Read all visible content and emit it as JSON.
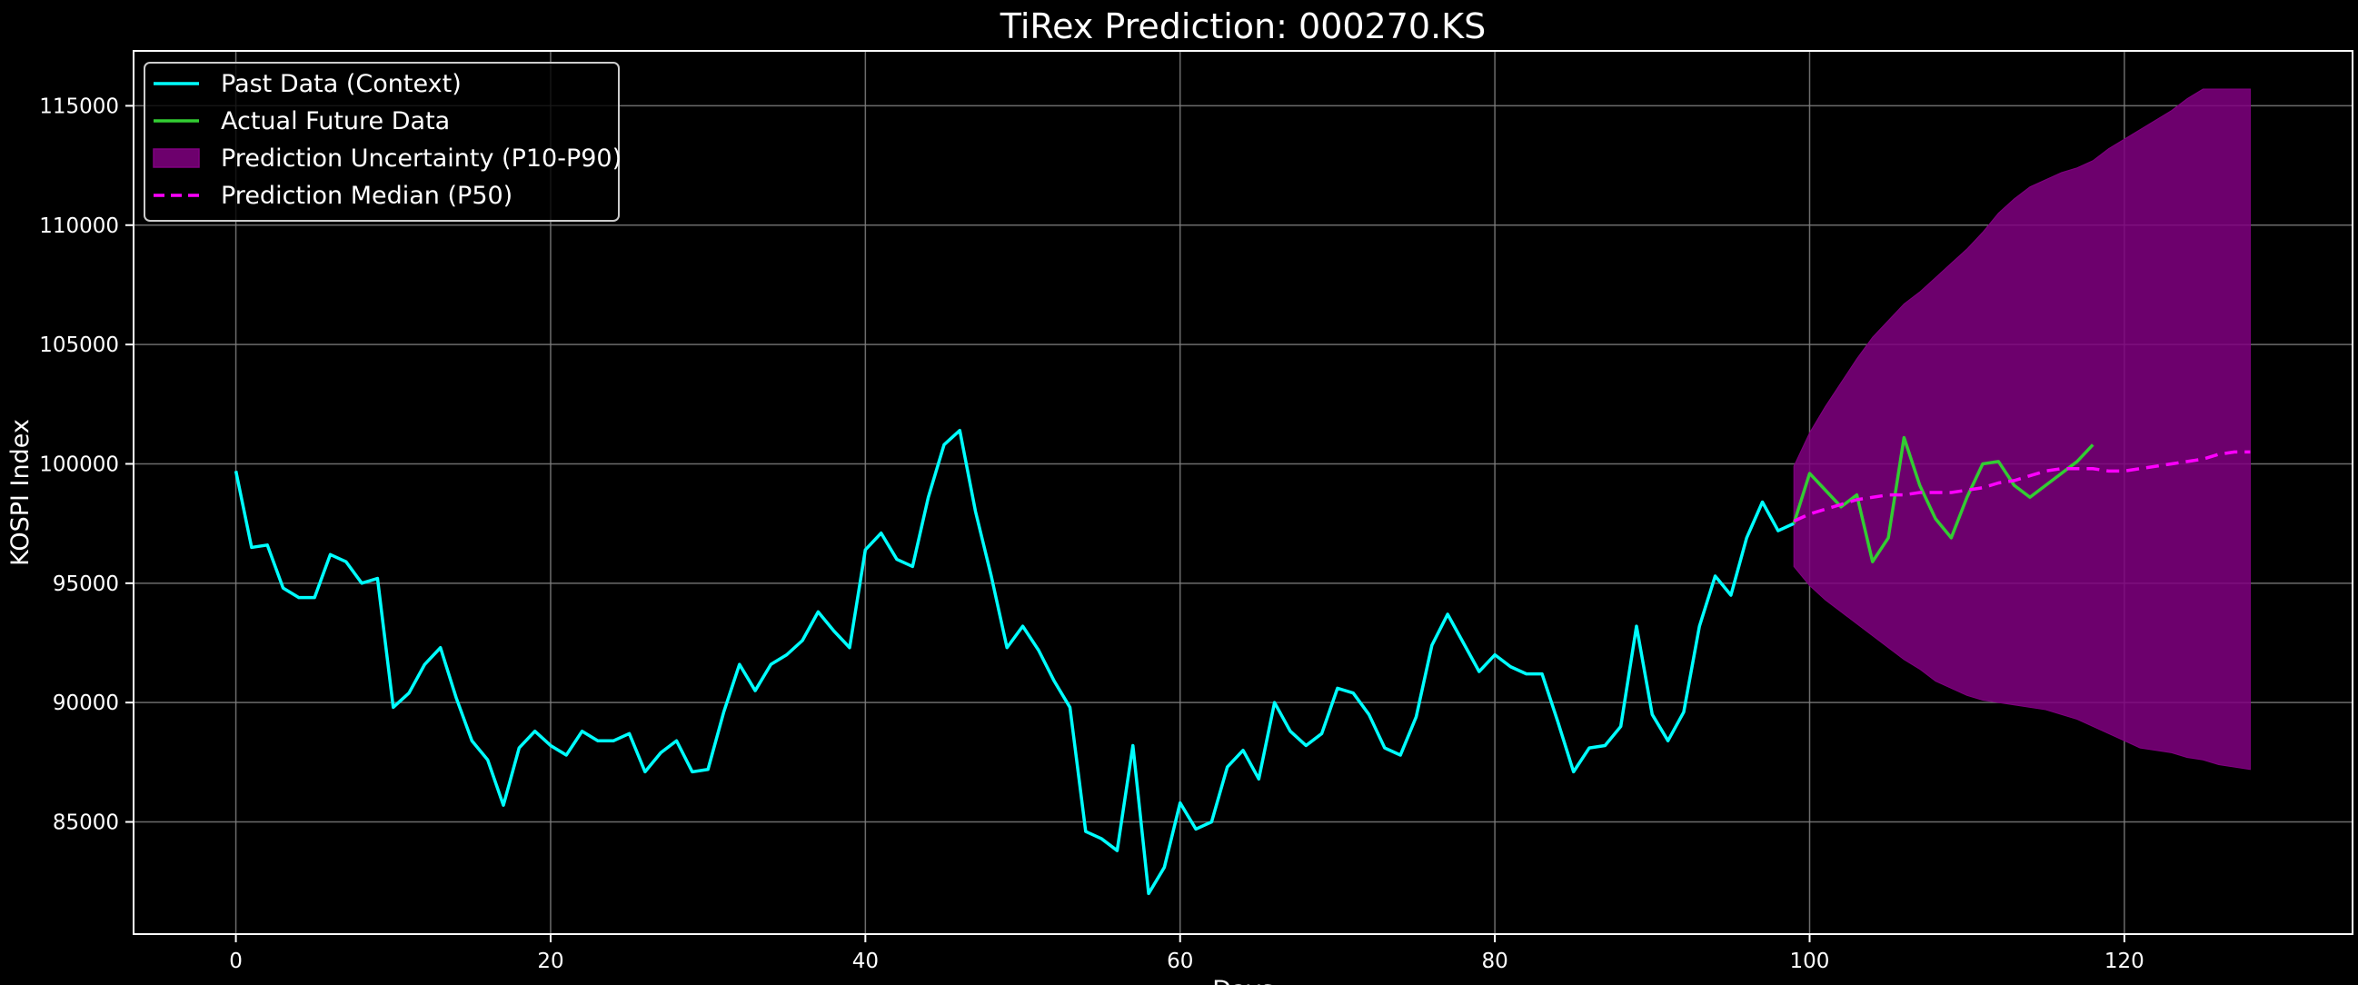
{
  "colors": {
    "background": "#000000",
    "past": "#00ffff",
    "actual": "#32cd32",
    "band": "#800080",
    "median": "#ff00ff",
    "grid": "#7f7f7f",
    "axis": "#ffffff"
  },
  "chart_data": {
    "type": "line",
    "title": "TiRex Prediction: 000270.KS",
    "xlabel": "Days",
    "ylabel": "KOSPI Index",
    "xlim": [
      -6.5,
      134.5
    ],
    "ylim": [
      80300,
      117300
    ],
    "xticks": [
      0,
      20,
      40,
      60,
      80,
      100,
      120
    ],
    "xtick_labels": [
      "0",
      "20",
      "40",
      "60",
      "80",
      "100",
      "120"
    ],
    "yticks": [
      85000,
      90000,
      95000,
      100000,
      105000,
      110000,
      115000
    ],
    "ytick_labels": [
      "85000",
      "90000",
      "95000",
      "100000",
      "105000",
      "110000",
      "115000"
    ],
    "grid": true,
    "legend_position": "top-left",
    "legend": [
      {
        "label": "Past Data (Context)",
        "kind": "line",
        "color": "#00ffff"
      },
      {
        "label": "Actual Future Data",
        "kind": "line",
        "color": "#32cd32"
      },
      {
        "label": "Prediction Uncertainty (P10-P90)",
        "kind": "patch",
        "color": "#800080"
      },
      {
        "label": "Prediction Median (P50)",
        "kind": "dash",
        "color": "#ff00ff"
      }
    ],
    "series": [
      {
        "name": "Past Data (Context)",
        "x_start": 0,
        "values": [
          99700,
          96500,
          96600,
          94800,
          94400,
          94400,
          96200,
          95900,
          95000,
          95200,
          89800,
          90400,
          91600,
          92300,
          90200,
          88400,
          87600,
          85700,
          88100,
          88800,
          88200,
          87800,
          88800,
          88400,
          88400,
          88700,
          87100,
          87900,
          88400,
          87100,
          87200,
          89600,
          91600,
          90500,
          91600,
          92000,
          92600,
          93800,
          93000,
          92300,
          96400,
          97100,
          96000,
          95700,
          98600,
          100800,
          101400,
          98000,
          95300,
          92300,
          93200,
          92200,
          90900,
          89800,
          84600,
          84300,
          83800,
          88200,
          82000,
          83100,
          85800,
          84700,
          85000,
          87300,
          88000,
          86800,
          90000,
          88800,
          88200,
          88700,
          90600,
          90400,
          89500,
          88100,
          87800,
          89400,
          92400,
          93700,
          92500,
          91300,
          92000,
          91500,
          91200,
          91200,
          89200,
          87100,
          88100,
          88200,
          89000,
          93200,
          89500,
          88400,
          89600,
          93200,
          95300,
          94500,
          96900,
          98400,
          97200,
          97500
        ]
      },
      {
        "name": "Actual Future Data",
        "x_start": 99,
        "values": [
          97500,
          99600,
          98900,
          98200,
          98700,
          95900,
          96900,
          101100,
          99100,
          97700,
          96900,
          98600,
          100000,
          100100,
          99100,
          98600,
          99100,
          99600,
          100100,
          100800
        ]
      },
      {
        "name": "Prediction Median (P50)",
        "x_start": 99,
        "values": [
          97600,
          97900,
          98100,
          98300,
          98500,
          98600,
          98700,
          98700,
          98800,
          98800,
          98800,
          98900,
          99000,
          99200,
          99300,
          99500,
          99700,
          99800,
          99800,
          99800,
          99700,
          99700,
          99800,
          99900,
          100000,
          100100,
          100200,
          100400,
          100500,
          100500
        ]
      },
      {
        "name": "Prediction Uncertainty (P10-P90)",
        "x_start": 99,
        "p10": [
          95700,
          94900,
          94300,
          93800,
          93300,
          92800,
          92300,
          91800,
          91400,
          90900,
          90600,
          90300,
          90100,
          90000,
          89900,
          89800,
          89700,
          89500,
          89300,
          89000,
          88700,
          88400,
          88100,
          88000,
          87900,
          87700,
          87600,
          87400,
          87300,
          87200
        ],
        "p90": [
          99900,
          101300,
          102400,
          103400,
          104400,
          105300,
          106000,
          106700,
          107200,
          107800,
          108400,
          109000,
          109700,
          110500,
          111100,
          111600,
          111900,
          112200,
          112400,
          112700,
          113200,
          113600,
          114000,
          114400,
          114800,
          115300,
          115700,
          115700,
          115700,
          115700
        ]
      }
    ]
  }
}
